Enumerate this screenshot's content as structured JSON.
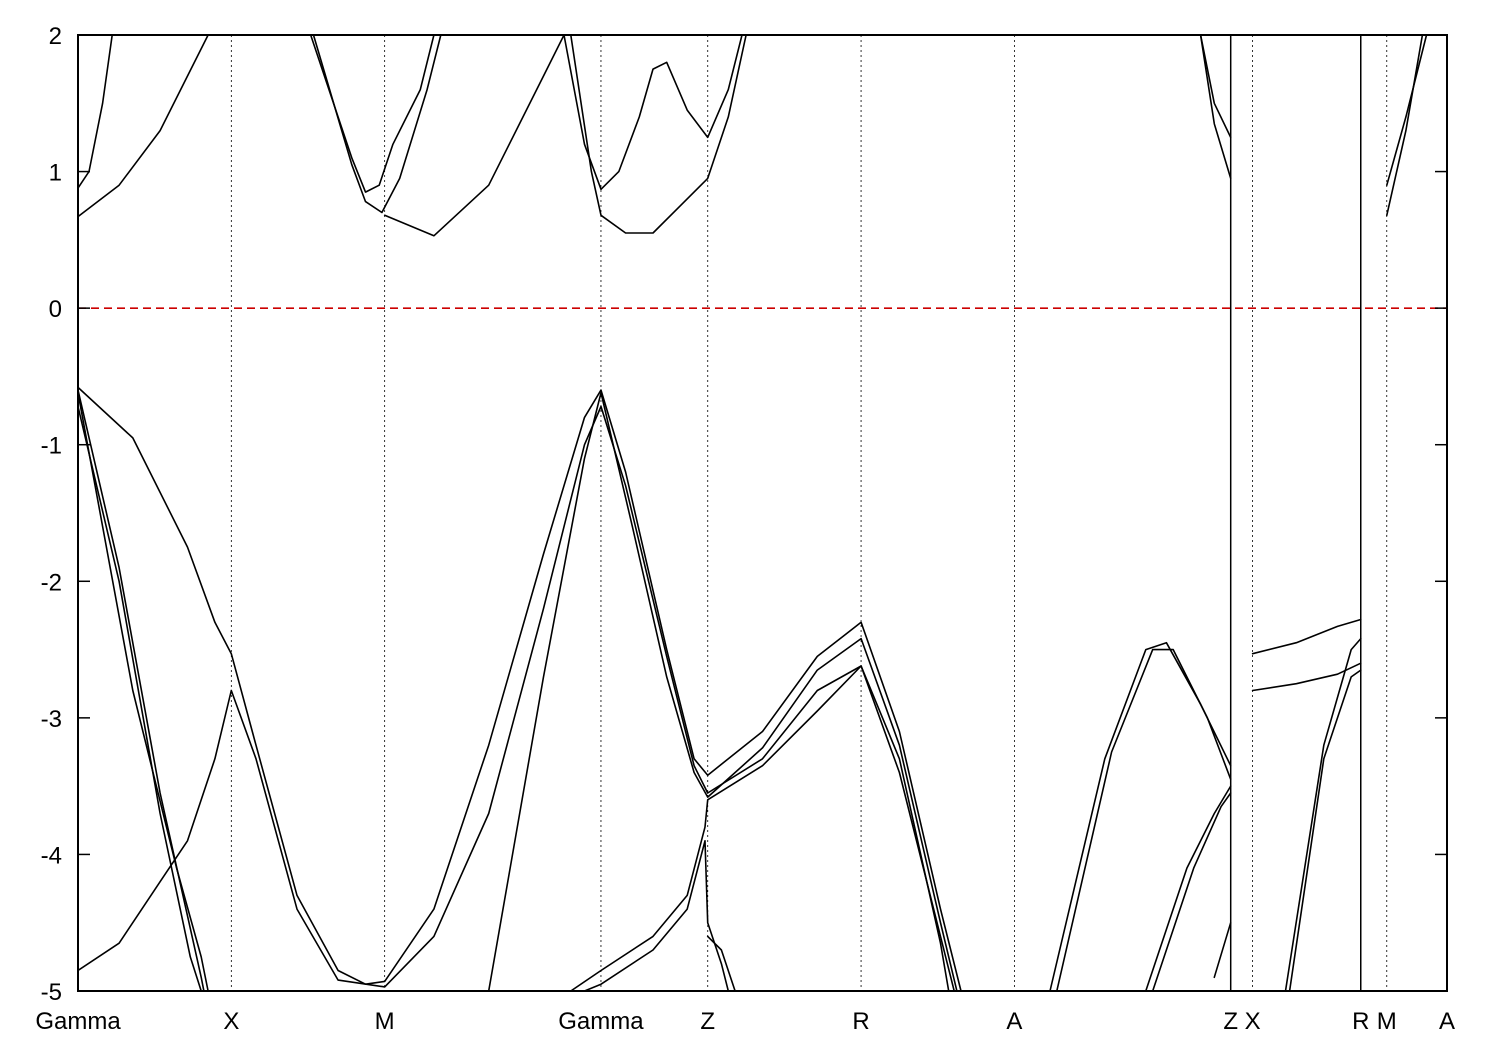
{
  "chart_data": {
    "type": "line",
    "title": "",
    "xlabel": "",
    "ylabel": "",
    "ylim": [
      -5,
      2
    ],
    "yticks": [
      -5,
      -4,
      -3,
      -2,
      -1,
      0,
      1,
      2
    ],
    "xlim": [
      0,
      10
    ],
    "grid": "dotted vertical lines at high-symmetry points",
    "legend": "none",
    "fermi_level": {
      "y": 0,
      "style": "dashed",
      "color": "#cc0000"
    },
    "axis_color": "#000000",
    "band_color": "#000000",
    "xticks": [
      {
        "label": "Gamma",
        "x": 0.0
      },
      {
        "label": "X",
        "x": 1.12
      },
      {
        "label": "M",
        "x": 2.24
      },
      {
        "label": "Gamma",
        "x": 3.82
      },
      {
        "label": "Z",
        "x": 4.6
      },
      {
        "label": "R",
        "x": 5.72
      },
      {
        "label": "A",
        "x": 6.84
      },
      {
        "label": "Z",
        "x": 8.42
      },
      {
        "label": "X",
        "x": 8.58
      },
      {
        "label": "R",
        "x": 9.37
      },
      {
        "label": "M",
        "x": 9.56
      },
      {
        "label": "A",
        "x": 10.0
      }
    ],
    "path_breaks": [
      8.42,
      9.37
    ],
    "series": [
      {
        "points": [
          [
            0.0,
            -0.58
          ],
          [
            0.4,
            -0.95
          ],
          [
            0.8,
            -1.75
          ],
          [
            1.0,
            -2.3
          ],
          [
            1.12,
            -2.53
          ],
          [
            1.3,
            -3.2
          ],
          [
            1.6,
            -4.3
          ],
          [
            1.9,
            -4.85
          ],
          [
            2.1,
            -4.95
          ],
          [
            2.24,
            -4.93
          ],
          [
            2.6,
            -4.4
          ],
          [
            3.0,
            -3.2
          ],
          [
            3.4,
            -1.8
          ],
          [
            3.7,
            -0.8
          ],
          [
            3.82,
            -0.6
          ],
          [
            4.0,
            -1.2
          ],
          [
            4.3,
            -2.5
          ],
          [
            4.5,
            -3.3
          ],
          [
            4.6,
            -3.42
          ],
          [
            5.0,
            -3.1
          ],
          [
            5.4,
            -2.55
          ],
          [
            5.72,
            -2.3
          ],
          [
            6.0,
            -3.1
          ],
          [
            6.3,
            -4.4
          ],
          [
            6.45,
            -5.0
          ]
        ]
      },
      {
        "points": [
          [
            0.0,
            -0.72
          ],
          [
            0.3,
            -2.0
          ],
          [
            0.6,
            -3.7
          ],
          [
            0.82,
            -4.75
          ],
          [
            0.9,
            -5.0
          ]
        ]
      },
      {
        "points": [
          [
            0.0,
            -0.6
          ],
          [
            0.3,
            -1.9
          ],
          [
            0.6,
            -3.55
          ],
          [
            0.9,
            -4.9
          ],
          [
            0.92,
            -5.0
          ]
        ]
      },
      {
        "points": [
          [
            0.0,
            -0.62
          ],
          [
            0.4,
            -2.8
          ],
          [
            0.72,
            -4.1
          ],
          [
            0.9,
            -4.75
          ],
          [
            0.95,
            -5.0
          ]
        ]
      },
      {
        "points": [
          [
            0.0,
            -4.85
          ],
          [
            0.3,
            -4.65
          ],
          [
            0.6,
            -4.2
          ],
          [
            0.8,
            -3.9
          ],
          [
            1.0,
            -3.3
          ],
          [
            1.12,
            -2.8
          ],
          [
            1.3,
            -3.3
          ],
          [
            1.6,
            -4.4
          ],
          [
            1.9,
            -4.92
          ],
          [
            2.24,
            -4.97
          ],
          [
            2.6,
            -4.6
          ],
          [
            3.0,
            -3.7
          ],
          [
            3.4,
            -2.2
          ],
          [
            3.7,
            -1.0
          ],
          [
            3.82,
            -0.72
          ],
          [
            4.0,
            -1.3
          ],
          [
            4.3,
            -2.55
          ],
          [
            4.5,
            -3.35
          ],
          [
            4.6,
            -3.55
          ],
          [
            5.0,
            -3.3
          ],
          [
            5.4,
            -2.8
          ],
          [
            5.72,
            -2.62
          ],
          [
            6.0,
            -3.4
          ],
          [
            6.3,
            -4.6
          ],
          [
            6.4,
            -5.0
          ]
        ]
      },
      {
        "points": [
          [
            3.0,
            -5.0
          ],
          [
            3.4,
            -2.7
          ],
          [
            3.7,
            -1.1
          ],
          [
            3.82,
            -0.62
          ],
          [
            4.05,
            -1.6
          ],
          [
            4.3,
            -2.7
          ],
          [
            4.5,
            -3.4
          ],
          [
            4.6,
            -3.58
          ],
          [
            5.0,
            -3.22
          ],
          [
            5.4,
            -2.65
          ],
          [
            5.72,
            -2.42
          ],
          [
            6.0,
            -3.2
          ],
          [
            6.3,
            -4.5
          ],
          [
            6.42,
            -5.0
          ]
        ]
      },
      {
        "points": [
          [
            3.6,
            -5.0
          ],
          [
            3.82,
            -4.85
          ],
          [
            4.2,
            -4.6
          ],
          [
            4.45,
            -4.3
          ],
          [
            4.58,
            -3.8
          ],
          [
            4.6,
            -3.6
          ],
          [
            5.0,
            -3.35
          ],
          [
            5.4,
            -2.95
          ],
          [
            5.72,
            -2.62
          ],
          [
            6.0,
            -3.3
          ],
          [
            6.3,
            -4.65
          ],
          [
            6.36,
            -5.0
          ]
        ]
      },
      {
        "points": [
          [
            3.7,
            -5.0
          ],
          [
            3.82,
            -4.95
          ],
          [
            4.2,
            -4.7
          ],
          [
            4.45,
            -4.4
          ],
          [
            4.58,
            -3.9
          ],
          [
            4.6,
            -4.5
          ],
          [
            4.7,
            -4.8
          ],
          [
            4.75,
            -5.0
          ]
        ]
      },
      {
        "points": [
          [
            4.6,
            -4.6
          ],
          [
            4.7,
            -4.7
          ],
          [
            4.8,
            -5.0
          ]
        ]
      },
      {
        "points": [
          [
            7.1,
            -5.0
          ],
          [
            7.5,
            -3.3
          ],
          [
            7.8,
            -2.5
          ],
          [
            7.95,
            -2.45
          ],
          [
            8.2,
            -2.9
          ],
          [
            8.42,
            -3.35
          ]
        ]
      },
      {
        "points": [
          [
            7.15,
            -5.0
          ],
          [
            7.55,
            -3.25
          ],
          [
            7.85,
            -2.5
          ],
          [
            8.0,
            -2.5
          ],
          [
            8.25,
            -3.0
          ],
          [
            8.42,
            -3.45
          ]
        ]
      },
      {
        "points": [
          [
            7.8,
            -5.0
          ],
          [
            8.1,
            -4.1
          ],
          [
            8.3,
            -3.7
          ],
          [
            8.42,
            -3.5
          ]
        ]
      },
      {
        "points": [
          [
            7.85,
            -5.0
          ],
          [
            8.15,
            -4.1
          ],
          [
            8.35,
            -3.65
          ],
          [
            8.42,
            -3.55
          ]
        ]
      },
      {
        "points": [
          [
            8.3,
            -4.9
          ],
          [
            8.42,
            -4.5
          ]
        ]
      },
      {
        "points": [
          [
            8.58,
            -2.53
          ],
          [
            8.9,
            -2.45
          ],
          [
            9.2,
            -2.33
          ],
          [
            9.37,
            -2.28
          ]
        ]
      },
      {
        "points": [
          [
            8.58,
            -2.8
          ],
          [
            8.9,
            -2.75
          ],
          [
            9.2,
            -2.68
          ],
          [
            9.37,
            -2.6
          ]
        ]
      },
      {
        "points": [
          [
            8.82,
            -5.0
          ],
          [
            9.1,
            -3.2
          ],
          [
            9.3,
            -2.5
          ],
          [
            9.37,
            -2.42
          ]
        ]
      },
      {
        "points": [
          [
            8.85,
            -5.0
          ],
          [
            9.1,
            -3.3
          ],
          [
            9.3,
            -2.7
          ],
          [
            9.37,
            -2.65
          ]
        ]
      },
      {
        "points": [
          [
            0.0,
            0.88
          ],
          [
            0.08,
            1.0
          ],
          [
            0.18,
            1.5
          ],
          [
            0.25,
            2.0
          ]
        ]
      },
      {
        "points": [
          [
            0.0,
            0.67
          ],
          [
            0.3,
            0.9
          ],
          [
            0.6,
            1.3
          ],
          [
            0.8,
            1.7
          ],
          [
            0.95,
            2.0
          ]
        ]
      },
      {
        "points": [
          [
            1.7,
            2.0
          ],
          [
            2.0,
            1.1
          ],
          [
            2.1,
            0.85
          ],
          [
            2.2,
            0.9
          ],
          [
            2.3,
            1.2
          ],
          [
            2.5,
            1.6
          ],
          [
            2.6,
            2.0
          ]
        ]
      },
      {
        "points": [
          [
            1.72,
            2.0
          ],
          [
            2.0,
            1.05
          ],
          [
            2.1,
            0.78
          ],
          [
            2.22,
            0.7
          ],
          [
            2.35,
            0.95
          ],
          [
            2.55,
            1.6
          ],
          [
            2.65,
            2.0
          ]
        ]
      },
      {
        "points": [
          [
            2.24,
            0.68
          ],
          [
            2.6,
            0.53
          ],
          [
            3.0,
            0.9
          ],
          [
            3.4,
            1.7
          ],
          [
            3.55,
            2.0
          ]
        ]
      },
      {
        "points": [
          [
            3.55,
            2.0
          ],
          [
            3.7,
            1.2
          ],
          [
            3.82,
            0.87
          ],
          [
            3.95,
            1.0
          ],
          [
            4.1,
            1.4
          ],
          [
            4.2,
            1.75
          ],
          [
            4.3,
            1.8
          ],
          [
            4.45,
            1.45
          ],
          [
            4.6,
            1.25
          ],
          [
            4.75,
            1.6
          ],
          [
            4.85,
            2.0
          ]
        ]
      },
      {
        "points": [
          [
            3.6,
            2.0
          ],
          [
            3.75,
            1.0
          ],
          [
            3.82,
            0.68
          ],
          [
            4.0,
            0.55
          ],
          [
            4.2,
            0.55
          ],
          [
            4.4,
            0.75
          ],
          [
            4.6,
            0.95
          ],
          [
            4.75,
            1.4
          ],
          [
            4.88,
            2.0
          ]
        ]
      },
      {
        "points": [
          [
            8.2,
            2.0
          ],
          [
            8.3,
            1.5
          ],
          [
            8.42,
            1.25
          ]
        ]
      },
      {
        "points": [
          [
            8.2,
            2.0
          ],
          [
            8.3,
            1.35
          ],
          [
            8.42,
            0.95
          ]
        ]
      },
      {
        "points": [
          [
            9.56,
            0.9
          ],
          [
            9.7,
            1.4
          ],
          [
            9.85,
            2.0
          ]
        ]
      },
      {
        "points": [
          [
            9.56,
            0.68
          ],
          [
            9.7,
            1.3
          ],
          [
            9.82,
            2.0
          ]
        ]
      }
    ]
  }
}
